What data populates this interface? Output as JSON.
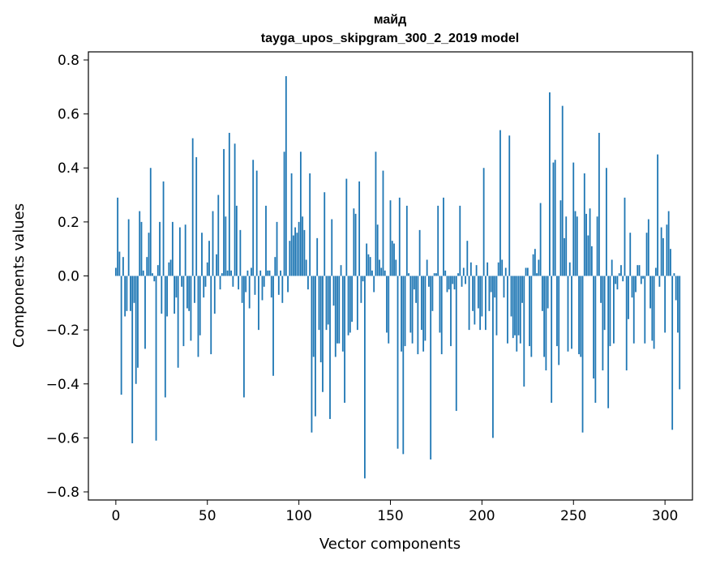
{
  "chart_data": {
    "type": "bar",
    "title": "майд",
    "subtitle": "tayga_upos_skipgram_300_2_2019 model",
    "xlabel": "Vector components",
    "ylabel": "Components values",
    "xlim": [
      -15,
      315
    ],
    "ylim": [
      -0.83,
      0.83
    ],
    "xticks": [
      0,
      50,
      100,
      150,
      200,
      250,
      300
    ],
    "xtick_labels": [
      "0",
      "50",
      "100",
      "150",
      "200",
      "250",
      "300"
    ],
    "yticks": [
      -0.8,
      -0.6,
      -0.4,
      -0.2,
      0.0,
      0.2,
      0.4,
      0.6,
      0.8
    ],
    "ytick_labels": [
      "−0.8",
      "−0.6",
      "−0.4",
      "−0.2",
      "0.0",
      "0.2",
      "0.4",
      "0.6",
      "0.8"
    ],
    "grid": false,
    "bar_color": "#1f77b4",
    "values": [
      0.03,
      0.29,
      0.09,
      -0.44,
      0.07,
      -0.15,
      -0.13,
      0.21,
      -0.13,
      -0.62,
      -0.1,
      -0.4,
      -0.34,
      0.24,
      0.2,
      0.02,
      -0.27,
      0.07,
      0.16,
      0.4,
      0.01,
      -0.02,
      -0.61,
      0.04,
      0.2,
      -0.14,
      0.35,
      -0.45,
      -0.15,
      0.05,
      0.06,
      0.2,
      -0.14,
      -0.08,
      -0.34,
      0.18,
      -0.04,
      -0.26,
      0.19,
      -0.12,
      -0.13,
      -0.24,
      0.51,
      -0.1,
      0.44,
      -0.3,
      -0.22,
      0.16,
      -0.08,
      -0.04,
      0.05,
      0.13,
      -0.29,
      0.24,
      -0.14,
      0.08,
      0.3,
      -0.05,
      0.01,
      0.47,
      0.22,
      0.02,
      0.53,
      0.02,
      -0.04,
      0.49,
      0.26,
      -0.05,
      0.17,
      -0.1,
      -0.45,
      -0.06,
      0.02,
      -0.12,
      0.03,
      0.43,
      -0.07,
      0.39,
      -0.2,
      0.02,
      -0.09,
      -0.04,
      0.26,
      0.02,
      0.02,
      -0.08,
      -0.37,
      0.07,
      0.2,
      -0.07,
      0.02,
      -0.1,
      0.46,
      0.74,
      -0.06,
      0.13,
      0.38,
      0.15,
      0.18,
      0.16,
      0.2,
      0.46,
      0.22,
      0.17,
      0.06,
      -0.05,
      0.38,
      -0.58,
      -0.3,
      -0.52,
      0.14,
      -0.2,
      -0.32,
      -0.43,
      0.31,
      -0.2,
      -0.18,
      -0.53,
      0.21,
      -0.11,
      -0.3,
      -0.25,
      -0.25,
      0.04,
      -0.28,
      -0.47,
      0.36,
      -0.22,
      -0.21,
      -0.17,
      0.25,
      0.23,
      -0.2,
      0.35,
      -0.1,
      -0.02,
      -0.75,
      0.12,
      0.08,
      0.07,
      0.02,
      -0.06,
      0.46,
      0.19,
      0.06,
      0.03,
      0.39,
      0.02,
      -0.21,
      -0.25,
      0.28,
      0.13,
      0.12,
      0.06,
      -0.64,
      0.29,
      -0.28,
      -0.66,
      -0.26,
      0.26,
      0.01,
      -0.21,
      -0.25,
      -0.05,
      -0.1,
      -0.29,
      0.17,
      -0.2,
      -0.28,
      -0.24,
      0.06,
      -0.04,
      -0.68,
      -0.13,
      0.01,
      0.01,
      0.26,
      -0.21,
      -0.29,
      0.29,
      0.02,
      -0.06,
      -0.05,
      -0.26,
      -0.03,
      -0.05,
      -0.5,
      0.01,
      0.26,
      -0.04,
      0.03,
      -0.03,
      0.13,
      -0.2,
      0.05,
      -0.13,
      -0.18,
      0.04,
      -0.12,
      -0.2,
      -0.15,
      0.4,
      -0.2,
      0.05,
      -0.13,
      -0.06,
      -0.6,
      -0.08,
      -0.22,
      0.05,
      0.54,
      0.06,
      -0.08,
      0.03,
      -0.25,
      0.52,
      -0.15,
      -0.23,
      -0.22,
      -0.28,
      -0.22,
      -0.25,
      -0.1,
      -0.41,
      0.03,
      0.03,
      -0.26,
      -0.3,
      0.08,
      0.1,
      0.01,
      0.06,
      0.27,
      -0.13,
      -0.3,
      -0.35,
      -0.12,
      0.68,
      -0.47,
      0.42,
      0.43,
      -0.26,
      -0.33,
      0.28,
      0.63,
      0.14,
      0.22,
      -0.28,
      0.05,
      -0.27,
      0.42,
      0.24,
      0.22,
      -0.29,
      -0.3,
      -0.58,
      0.38,
      0.23,
      0.15,
      0.25,
      0.11,
      -0.38,
      -0.47,
      0.22,
      0.53,
      -0.1,
      -0.35,
      -0.2,
      0.4,
      -0.49,
      -0.26,
      0.06,
      -0.25,
      -0.03,
      -0.05,
      0.01,
      0.04,
      -0.02,
      0.29,
      -0.35,
      -0.16,
      0.16,
      -0.08,
      -0.25,
      -0.06,
      0.04,
      0.04,
      -0.03,
      -0.01,
      -0.25,
      0.16,
      0.21,
      -0.12,
      -0.24,
      -0.27,
      0.03,
      0.45,
      -0.04,
      0.18,
      0.14,
      -0.21,
      0.19,
      0.24,
      0.1,
      -0.57,
      0.01,
      -0.09,
      -0.21,
      -0.42
    ]
  }
}
